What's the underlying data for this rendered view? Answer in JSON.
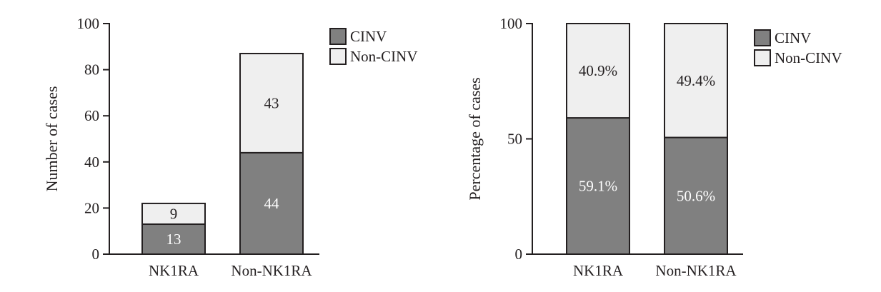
{
  "chart_data": [
    {
      "type": "bar",
      "stacked": true,
      "categories": [
        "NK1RA",
        "Non-NK1RA"
      ],
      "series": [
        {
          "name": "CINV",
          "values": [
            13,
            44
          ],
          "labels": [
            "13",
            "44"
          ],
          "color": "#808080"
        },
        {
          "name": "Non-CINV",
          "values": [
            9,
            43
          ],
          "labels": [
            "9",
            "43"
          ],
          "color": "#efefef"
        }
      ],
      "ylabel": "Number of cases",
      "xlabel": "",
      "ylim": [
        0,
        100
      ],
      "yticks": [
        0,
        20,
        40,
        60,
        80,
        100
      ],
      "legend": {
        "position": "top-right",
        "entries": [
          "CINV",
          "Non-CINV"
        ]
      },
      "grid": false
    },
    {
      "type": "bar",
      "stacked": true,
      "categories": [
        "NK1RA",
        "Non-NK1RA"
      ],
      "series": [
        {
          "name": "CINV",
          "values": [
            59.1,
            50.6
          ],
          "labels": [
            "59.1%",
            "50.6%"
          ],
          "color": "#808080"
        },
        {
          "name": "Non-CINV",
          "values": [
            40.9,
            49.4
          ],
          "labels": [
            "40.9%",
            "49.4%"
          ],
          "color": "#efefef"
        }
      ],
      "ylabel": "Percentage of cases",
      "xlabel": "",
      "ylim": [
        0,
        100
      ],
      "yticks": [
        0,
        50,
        100
      ],
      "legend": {
        "position": "top-right",
        "entries": [
          "CINV",
          "Non-CINV"
        ]
      },
      "grid": false
    }
  ]
}
